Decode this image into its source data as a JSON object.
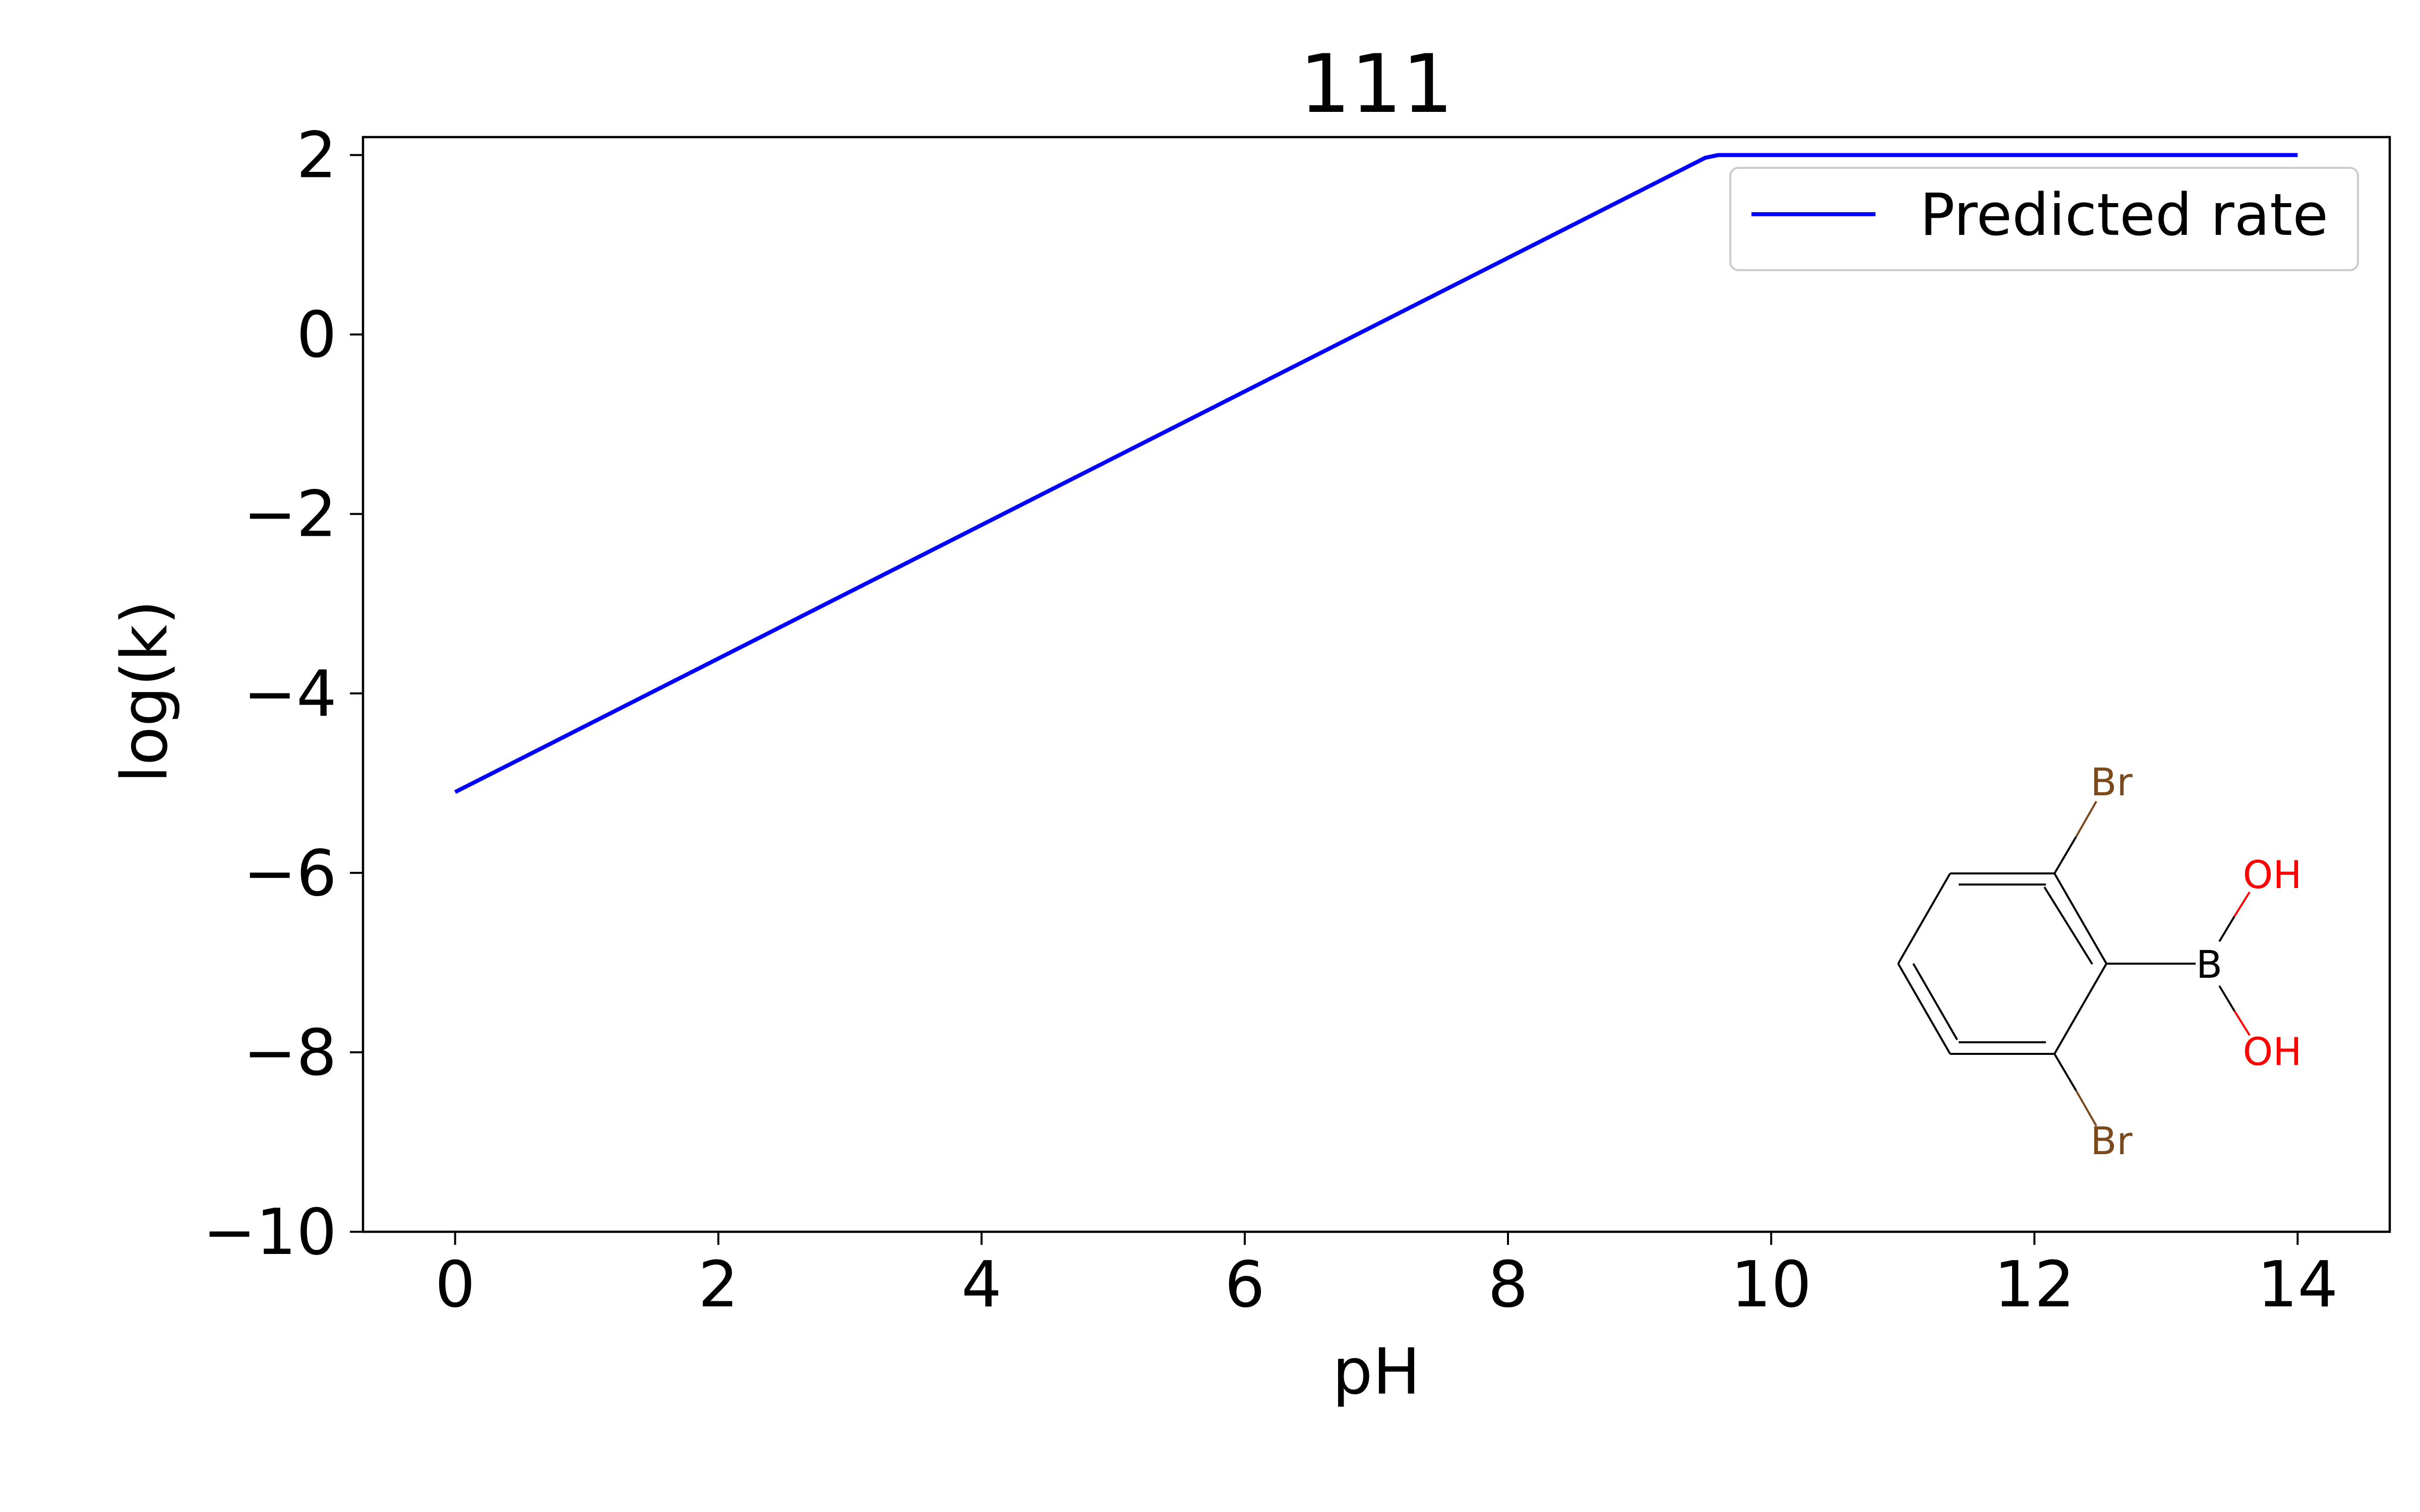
{
  "chart_data": {
    "type": "line",
    "title": "111",
    "xlabel": "pH",
    "ylabel": "log(k)",
    "xlim": [
      -0.7,
      14.7
    ],
    "ylim": [
      -10,
      2.2
    ],
    "xticks": [
      0,
      2,
      4,
      6,
      8,
      10,
      12,
      14
    ],
    "yticks": [
      2,
      0,
      -2,
      -4,
      -6,
      -8,
      -10
    ],
    "xtick_labels": [
      "0",
      "2",
      "4",
      "6",
      "8",
      "10",
      "12",
      "14"
    ],
    "ytick_labels": [
      "2",
      "0",
      "−2",
      "−4",
      "−6",
      "−8",
      "−10"
    ],
    "grid": false,
    "legend_position": "top-right",
    "series": [
      {
        "name": "Predicted rate",
        "color": "#0000ff",
        "x": [
          0,
          9.5,
          9.6,
          14
        ],
        "y": [
          -5.1,
          1.97,
          2.0,
          2.0
        ]
      }
    ],
    "inset_structure": {
      "name": "2,6-dibromophenylboronic acid",
      "atoms": {
        "br_top": "Br",
        "br_bottom": "Br",
        "boron": "B",
        "oh_top": "OH",
        "oh_bottom": "OH"
      },
      "colors": {
        "bromine": "#7a4a1c",
        "oxygen": "#ff0000",
        "bond": "#000000"
      }
    }
  }
}
